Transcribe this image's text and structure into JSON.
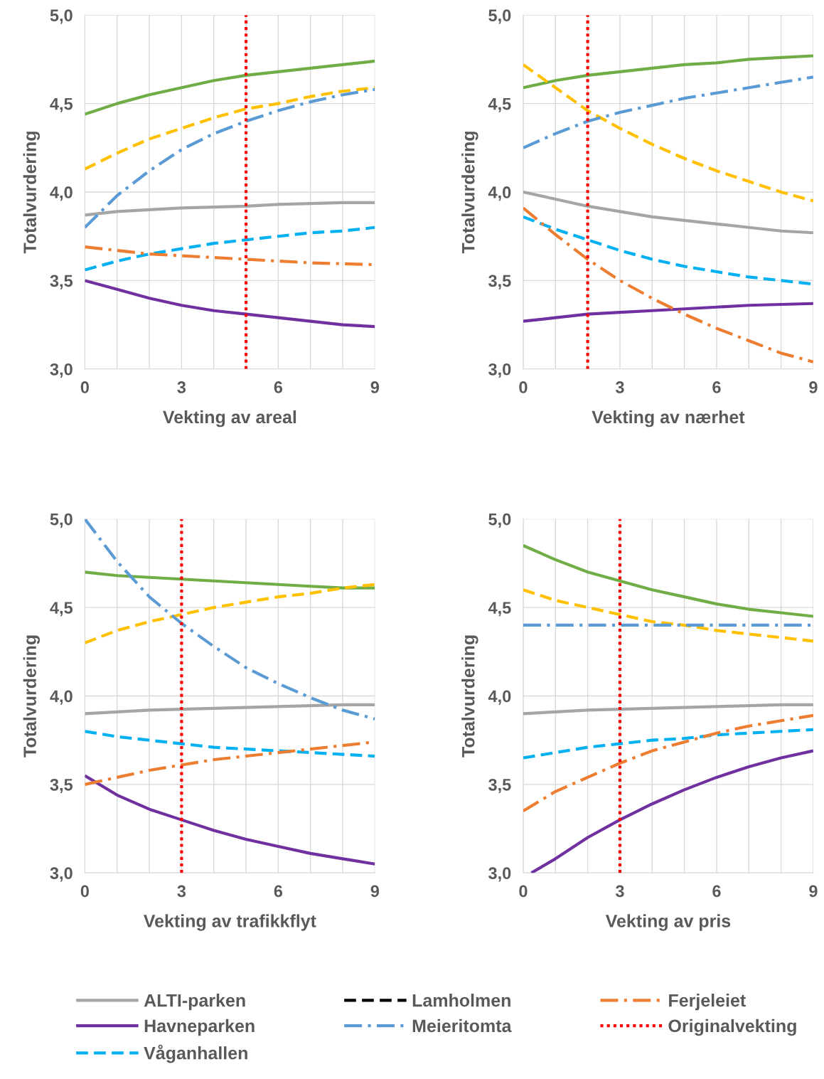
{
  "chart_data": [
    {
      "type": "line",
      "xlabel": "Vekting av areal",
      "ylabel": "Totalvurdering",
      "x": [
        0,
        1,
        2,
        3,
        4,
        5,
        6,
        7,
        8,
        9
      ],
      "xlim": [
        0,
        9
      ],
      "ylim": [
        3.0,
        5.0
      ],
      "xticks": [
        0,
        {
          "value": 1,
          "label": null
        },
        {
          "value": 2,
          "label": null
        },
        3,
        {
          "value": 4,
          "label": null
        },
        {
          "value": 5,
          "label": null
        },
        6,
        {
          "value": 7,
          "label": null
        },
        {
          "value": 8,
          "label": null
        },
        9
      ],
      "yticks": [
        {
          "value": 3.0,
          "label": "3,0"
        },
        {
          "value": 3.5,
          "label": "3,5"
        },
        {
          "value": 4.0,
          "label": "4,0"
        },
        {
          "value": 4.5,
          "label": "4,5"
        },
        {
          "value": 5.0,
          "label": "5,0"
        }
      ],
      "grid": true,
      "legend": "bottom",
      "marker": "none",
      "ref_lines": [
        {
          "axis": "x",
          "value": 5,
          "label": "Originalvekting",
          "color": "#ff0000",
          "line_style": "dotted"
        }
      ],
      "series": [
        {
          "color": "#70ad47",
          "line_style": "solid",
          "values": [
            4.44,
            4.5,
            4.55,
            4.59,
            4.63,
            4.66,
            4.68,
            4.7,
            4.72,
            4.74
          ]
        },
        {
          "name": "ALTI-parken",
          "color": "#a5a5a5",
          "line_style": "solid",
          "values": [
            3.87,
            3.89,
            3.9,
            3.91,
            3.915,
            3.92,
            3.93,
            3.935,
            3.94,
            3.94
          ]
        },
        {
          "name": "Havneparken",
          "color": "#7030a0",
          "line_style": "solid",
          "values": [
            3.5,
            3.45,
            3.4,
            3.36,
            3.33,
            3.31,
            3.29,
            3.27,
            3.25,
            3.24
          ]
        },
        {
          "color": "#ffc000",
          "line_style": "dashed",
          "values": [
            4.13,
            4.22,
            4.3,
            4.36,
            4.42,
            4.47,
            4.5,
            4.54,
            4.57,
            4.59
          ]
        },
        {
          "name": "Våganhallen",
          "color": "#00b0f0",
          "line_style": "dashed",
          "values": [
            3.56,
            3.61,
            3.65,
            3.68,
            3.71,
            3.73,
            3.75,
            3.77,
            3.78,
            3.8
          ]
        },
        {
          "name": "Lamholmen",
          "color": "#000000",
          "line_style": "dashed",
          "values": [
            null,
            null,
            null,
            null,
            null,
            null,
            null,
            null,
            null,
            null
          ]
        },
        {
          "name": "Meieritomta",
          "color": "#5b9bd5",
          "line_style": "dashdot",
          "values": [
            3.8,
            3.98,
            4.12,
            4.24,
            4.33,
            4.4,
            4.46,
            4.51,
            4.55,
            4.58
          ]
        },
        {
          "name": "Ferjeleiet",
          "color": "#ed7d31",
          "line_style": "dashdot",
          "values": [
            3.69,
            3.67,
            3.65,
            3.64,
            3.63,
            3.62,
            3.61,
            3.6,
            3.595,
            3.59
          ]
        }
      ]
    },
    {
      "type": "line",
      "xlabel": "Vekting av nærhet",
      "ylabel": "Totalvurdering",
      "x": [
        0,
        1,
        2,
        3,
        4,
        5,
        6,
        7,
        8,
        9
      ],
      "xlim": [
        0,
        9
      ],
      "ylim": [
        3.0,
        5.0
      ],
      "xticks": [
        0,
        {
          "value": 1,
          "label": null
        },
        {
          "value": 2,
          "label": null
        },
        3,
        {
          "value": 4,
          "label": null
        },
        {
          "value": 5,
          "label": null
        },
        6,
        {
          "value": 7,
          "label": null
        },
        {
          "value": 8,
          "label": null
        },
        9
      ],
      "yticks": [
        {
          "value": 3.0,
          "label": "3,0"
        },
        {
          "value": 3.5,
          "label": "3,5"
        },
        {
          "value": 4.0,
          "label": "4,0"
        },
        {
          "value": 4.5,
          "label": "4,5"
        },
        {
          "value": 5.0,
          "label": "5,0"
        }
      ],
      "grid": true,
      "marker": "none",
      "ref_lines": [
        {
          "axis": "x",
          "value": 2,
          "color": "#ff0000",
          "line_style": "dotted"
        }
      ],
      "series": [
        {
          "color": "#70ad47",
          "line_style": "solid",
          "values": [
            4.59,
            4.63,
            4.66,
            4.68,
            4.7,
            4.72,
            4.73,
            4.75,
            4.76,
            4.77
          ]
        },
        {
          "name": "ALTI-parken",
          "color": "#a5a5a5",
          "line_style": "solid",
          "values": [
            4.0,
            3.96,
            3.92,
            3.89,
            3.86,
            3.84,
            3.82,
            3.8,
            3.78,
            3.77
          ]
        },
        {
          "name": "Havneparken",
          "color": "#7030a0",
          "line_style": "solid",
          "values": [
            3.27,
            3.29,
            3.31,
            3.32,
            3.33,
            3.34,
            3.35,
            3.36,
            3.365,
            3.37
          ]
        },
        {
          "color": "#ffc000",
          "line_style": "dashed",
          "values": [
            4.72,
            4.59,
            4.46,
            4.36,
            4.27,
            4.19,
            4.12,
            4.06,
            4.0,
            3.95
          ]
        },
        {
          "name": "Våganhallen",
          "color": "#00b0f0",
          "line_style": "dashed",
          "values": [
            3.86,
            3.79,
            3.73,
            3.67,
            3.62,
            3.58,
            3.55,
            3.52,
            3.5,
            3.48
          ]
        },
        {
          "name": "Meieritomta",
          "color": "#5b9bd5",
          "line_style": "dashdot",
          "values": [
            4.25,
            4.33,
            4.4,
            4.45,
            4.49,
            4.53,
            4.56,
            4.59,
            4.62,
            4.65
          ]
        },
        {
          "name": "Ferjeleiet",
          "color": "#ed7d31",
          "line_style": "dashdot",
          "values": [
            3.91,
            3.76,
            3.62,
            3.5,
            3.4,
            3.31,
            3.23,
            3.16,
            3.09,
            3.04
          ]
        }
      ]
    },
    {
      "type": "line",
      "xlabel": "Vekting av trafikkflyt",
      "ylabel": "Totalvurdering",
      "x": [
        0,
        1,
        2,
        3,
        4,
        5,
        6,
        7,
        8,
        9
      ],
      "xlim": [
        0,
        9
      ],
      "ylim": [
        3.0,
        5.0
      ],
      "xticks": [
        0,
        {
          "value": 1,
          "label": null
        },
        {
          "value": 2,
          "label": null
        },
        3,
        {
          "value": 4,
          "label": null
        },
        {
          "value": 5,
          "label": null
        },
        6,
        {
          "value": 7,
          "label": null
        },
        {
          "value": 8,
          "label": null
        },
        9
      ],
      "yticks": [
        {
          "value": 3.0,
          "label": "3,0"
        },
        {
          "value": 3.5,
          "label": "3,5"
        },
        {
          "value": 4.0,
          "label": "4,0"
        },
        {
          "value": 4.5,
          "label": "4,5"
        },
        {
          "value": 5.0,
          "label": "5,0"
        }
      ],
      "grid": true,
      "marker": "none",
      "ref_lines": [
        {
          "axis": "x",
          "value": 3,
          "color": "#ff0000",
          "line_style": "dotted"
        }
      ],
      "series": [
        {
          "color": "#70ad47",
          "line_style": "solid",
          "values": [
            4.7,
            4.68,
            4.67,
            4.66,
            4.65,
            4.64,
            4.63,
            4.62,
            4.61,
            4.61
          ]
        },
        {
          "name": "ALTI-parken",
          "color": "#a5a5a5",
          "line_style": "solid",
          "values": [
            3.9,
            3.91,
            3.92,
            3.925,
            3.93,
            3.935,
            3.94,
            3.945,
            3.95,
            3.95
          ]
        },
        {
          "name": "Havneparken",
          "color": "#7030a0",
          "line_style": "solid",
          "values": [
            3.55,
            3.44,
            3.36,
            3.3,
            3.24,
            3.19,
            3.15,
            3.11,
            3.08,
            3.05
          ]
        },
        {
          "color": "#ffc000",
          "line_style": "dashed",
          "values": [
            4.3,
            4.37,
            4.42,
            4.46,
            4.5,
            4.53,
            4.56,
            4.58,
            4.61,
            4.63
          ]
        },
        {
          "name": "Våganhallen",
          "color": "#00b0f0",
          "line_style": "dashed",
          "values": [
            3.8,
            3.77,
            3.75,
            3.73,
            3.71,
            3.7,
            3.69,
            3.68,
            3.67,
            3.66
          ]
        },
        {
          "name": "Meieritomta",
          "color": "#5b9bd5",
          "line_style": "dashdot",
          "values": [
            5.0,
            4.76,
            4.56,
            4.41,
            4.28,
            4.16,
            4.07,
            3.99,
            3.92,
            3.87
          ]
        },
        {
          "name": "Ferjeleiet",
          "color": "#ed7d31",
          "line_style": "dashdot",
          "values": [
            3.5,
            3.54,
            3.58,
            3.61,
            3.64,
            3.66,
            3.68,
            3.7,
            3.72,
            3.74
          ]
        }
      ]
    },
    {
      "type": "line",
      "xlabel": "Vekting av pris",
      "ylabel": "Totalvurdering",
      "x": [
        0,
        1,
        2,
        3,
        4,
        5,
        6,
        7,
        8,
        9
      ],
      "xlim": [
        0,
        9
      ],
      "ylim": [
        3.0,
        5.0
      ],
      "xticks": [
        0,
        {
          "value": 1,
          "label": null
        },
        {
          "value": 2,
          "label": null
        },
        3,
        {
          "value": 4,
          "label": null
        },
        {
          "value": 5,
          "label": null
        },
        6,
        {
          "value": 7,
          "label": null
        },
        {
          "value": 8,
          "label": null
        },
        9
      ],
      "yticks": [
        {
          "value": 3.0,
          "label": "3,0"
        },
        {
          "value": 3.5,
          "label": "3,5"
        },
        {
          "value": 4.0,
          "label": "4,0"
        },
        {
          "value": 4.5,
          "label": "4,5"
        },
        {
          "value": 5.0,
          "label": "5,0"
        }
      ],
      "grid": true,
      "marker": "none",
      "ref_lines": [
        {
          "axis": "x",
          "value": 3,
          "color": "#ff0000",
          "line_style": "dotted"
        }
      ],
      "series": [
        {
          "color": "#70ad47",
          "line_style": "solid",
          "values": [
            4.85,
            4.77,
            4.7,
            4.65,
            4.6,
            4.56,
            4.52,
            4.49,
            4.47,
            4.45
          ]
        },
        {
          "name": "ALTI-parken",
          "color": "#a5a5a5",
          "line_style": "solid",
          "values": [
            3.9,
            3.91,
            3.92,
            3.925,
            3.93,
            3.935,
            3.94,
            3.945,
            3.95,
            3.95
          ]
        },
        {
          "name": "Havneparken",
          "color": "#7030a0",
          "line_style": "solid",
          "x": [
            0.25,
            1,
            2,
            3,
            4,
            5,
            6,
            7,
            8,
            9
          ],
          "values": [
            3.0,
            3.08,
            3.2,
            3.3,
            3.39,
            3.47,
            3.54,
            3.6,
            3.65,
            3.69
          ]
        },
        {
          "color": "#ffc000",
          "line_style": "dashed",
          "values": [
            4.6,
            4.54,
            4.5,
            4.46,
            4.42,
            4.4,
            4.37,
            4.35,
            4.33,
            4.31
          ]
        },
        {
          "name": "Våganhallen",
          "color": "#00b0f0",
          "line_style": "dashed",
          "values": [
            3.65,
            3.68,
            3.71,
            3.73,
            3.75,
            3.76,
            3.78,
            3.79,
            3.8,
            3.81
          ]
        },
        {
          "name": "Meieritomta",
          "color": "#5b9bd5",
          "line_style": "dashdot",
          "values": [
            4.4,
            4.4,
            4.4,
            4.4,
            4.4,
            4.4,
            4.4,
            4.4,
            4.4,
            4.4
          ]
        },
        {
          "name": "Ferjeleiet",
          "color": "#ed7d31",
          "line_style": "dashdot",
          "values": [
            3.35,
            3.46,
            3.54,
            3.62,
            3.69,
            3.74,
            3.79,
            3.83,
            3.86,
            3.89
          ]
        }
      ]
    }
  ]
}
